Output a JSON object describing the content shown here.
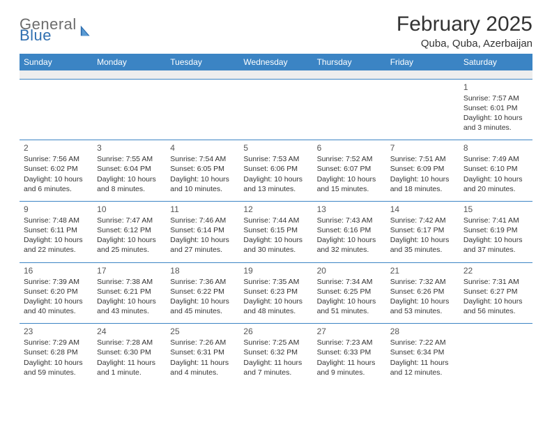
{
  "logo": {
    "top": "General",
    "bottom": "Blue"
  },
  "title": "February 2025",
  "location": "Quba, Quba, Azerbaijan",
  "colors": {
    "header_bg": "#3b84c4",
    "header_text": "#ffffff",
    "row_border": "#3b84c4",
    "blank_row_bg": "#eeeeee",
    "body_text": "#333333",
    "logo_top": "#6c6c6c",
    "logo_bottom": "#2f6fb0"
  },
  "weekdays": [
    "Sunday",
    "Monday",
    "Tuesday",
    "Wednesday",
    "Thursday",
    "Friday",
    "Saturday"
  ],
  "weeks": [
    [
      null,
      null,
      null,
      null,
      null,
      null,
      {
        "n": "1",
        "sr": "7:57 AM",
        "ss": "6:01 PM",
        "dl": "10 hours and 3 minutes."
      }
    ],
    [
      {
        "n": "2",
        "sr": "7:56 AM",
        "ss": "6:02 PM",
        "dl": "10 hours and 6 minutes."
      },
      {
        "n": "3",
        "sr": "7:55 AM",
        "ss": "6:04 PM",
        "dl": "10 hours and 8 minutes."
      },
      {
        "n": "4",
        "sr": "7:54 AM",
        "ss": "6:05 PM",
        "dl": "10 hours and 10 minutes."
      },
      {
        "n": "5",
        "sr": "7:53 AM",
        "ss": "6:06 PM",
        "dl": "10 hours and 13 minutes."
      },
      {
        "n": "6",
        "sr": "7:52 AM",
        "ss": "6:07 PM",
        "dl": "10 hours and 15 minutes."
      },
      {
        "n": "7",
        "sr": "7:51 AM",
        "ss": "6:09 PM",
        "dl": "10 hours and 18 minutes."
      },
      {
        "n": "8",
        "sr": "7:49 AM",
        "ss": "6:10 PM",
        "dl": "10 hours and 20 minutes."
      }
    ],
    [
      {
        "n": "9",
        "sr": "7:48 AM",
        "ss": "6:11 PM",
        "dl": "10 hours and 22 minutes."
      },
      {
        "n": "10",
        "sr": "7:47 AM",
        "ss": "6:12 PM",
        "dl": "10 hours and 25 minutes."
      },
      {
        "n": "11",
        "sr": "7:46 AM",
        "ss": "6:14 PM",
        "dl": "10 hours and 27 minutes."
      },
      {
        "n": "12",
        "sr": "7:44 AM",
        "ss": "6:15 PM",
        "dl": "10 hours and 30 minutes."
      },
      {
        "n": "13",
        "sr": "7:43 AM",
        "ss": "6:16 PM",
        "dl": "10 hours and 32 minutes."
      },
      {
        "n": "14",
        "sr": "7:42 AM",
        "ss": "6:17 PM",
        "dl": "10 hours and 35 minutes."
      },
      {
        "n": "15",
        "sr": "7:41 AM",
        "ss": "6:19 PM",
        "dl": "10 hours and 37 minutes."
      }
    ],
    [
      {
        "n": "16",
        "sr": "7:39 AM",
        "ss": "6:20 PM",
        "dl": "10 hours and 40 minutes."
      },
      {
        "n": "17",
        "sr": "7:38 AM",
        "ss": "6:21 PM",
        "dl": "10 hours and 43 minutes."
      },
      {
        "n": "18",
        "sr": "7:36 AM",
        "ss": "6:22 PM",
        "dl": "10 hours and 45 minutes."
      },
      {
        "n": "19",
        "sr": "7:35 AM",
        "ss": "6:23 PM",
        "dl": "10 hours and 48 minutes."
      },
      {
        "n": "20",
        "sr": "7:34 AM",
        "ss": "6:25 PM",
        "dl": "10 hours and 51 minutes."
      },
      {
        "n": "21",
        "sr": "7:32 AM",
        "ss": "6:26 PM",
        "dl": "10 hours and 53 minutes."
      },
      {
        "n": "22",
        "sr": "7:31 AM",
        "ss": "6:27 PM",
        "dl": "10 hours and 56 minutes."
      }
    ],
    [
      {
        "n": "23",
        "sr": "7:29 AM",
        "ss": "6:28 PM",
        "dl": "10 hours and 59 minutes."
      },
      {
        "n": "24",
        "sr": "7:28 AM",
        "ss": "6:30 PM",
        "dl": "11 hours and 1 minute."
      },
      {
        "n": "25",
        "sr": "7:26 AM",
        "ss": "6:31 PM",
        "dl": "11 hours and 4 minutes."
      },
      {
        "n": "26",
        "sr": "7:25 AM",
        "ss": "6:32 PM",
        "dl": "11 hours and 7 minutes."
      },
      {
        "n": "27",
        "sr": "7:23 AM",
        "ss": "6:33 PM",
        "dl": "11 hours and 9 minutes."
      },
      {
        "n": "28",
        "sr": "7:22 AM",
        "ss": "6:34 PM",
        "dl": "11 hours and 12 minutes."
      },
      null
    ]
  ],
  "labels": {
    "sunrise": "Sunrise:",
    "sunset": "Sunset:",
    "daylight": "Daylight:"
  }
}
